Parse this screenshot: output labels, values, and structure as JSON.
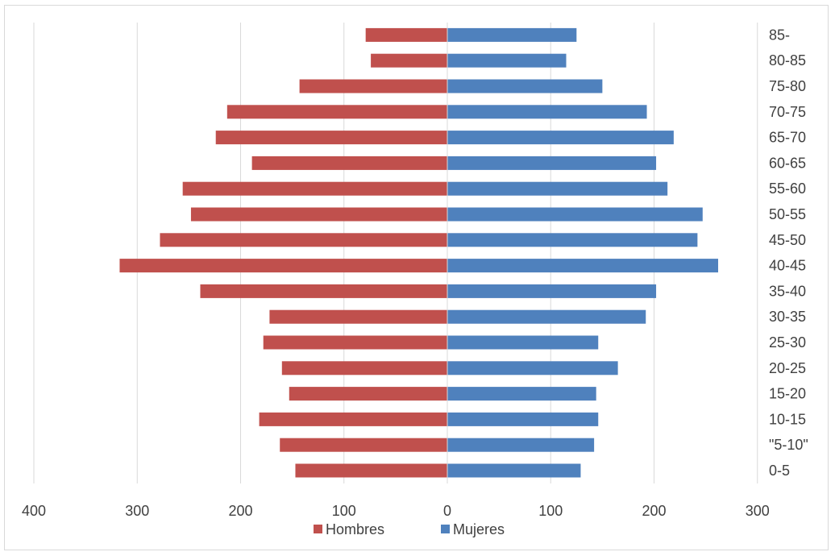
{
  "chart_data": {
    "type": "bar",
    "orientation": "horizontal",
    "layout": "population-pyramid",
    "categories": [
      "0-5",
      "\"5-10\"",
      "10-15",
      "15-20",
      "20-25",
      "25-30",
      "30-35",
      "35-40",
      "40-45",
      "45-50",
      "50-55",
      "55-60",
      "60-65",
      "65-70",
      "70-75",
      "75-80",
      "80-85",
      "85-"
    ],
    "series": [
      {
        "name": "Hombres",
        "color": "#c0504d",
        "values": [
          147,
          162,
          182,
          153,
          160,
          178,
          172,
          239,
          317,
          278,
          248,
          256,
          189,
          224,
          213,
          143,
          74,
          79
        ]
      },
      {
        "name": "Mujeres",
        "color": "#4f81bd",
        "values": [
          129,
          142,
          146,
          144,
          165,
          146,
          192,
          202,
          262,
          242,
          247,
          213,
          202,
          219,
          193,
          150,
          115,
          125
        ]
      }
    ],
    "x_ticks": [
      "400",
      "300",
      "200",
      "100",
      "0",
      "100",
      "200",
      "300"
    ],
    "x_range": [
      -400,
      300
    ],
    "grid": true,
    "legend_position": "bottom",
    "title": "",
    "xlabel": "",
    "ylabel": ""
  }
}
